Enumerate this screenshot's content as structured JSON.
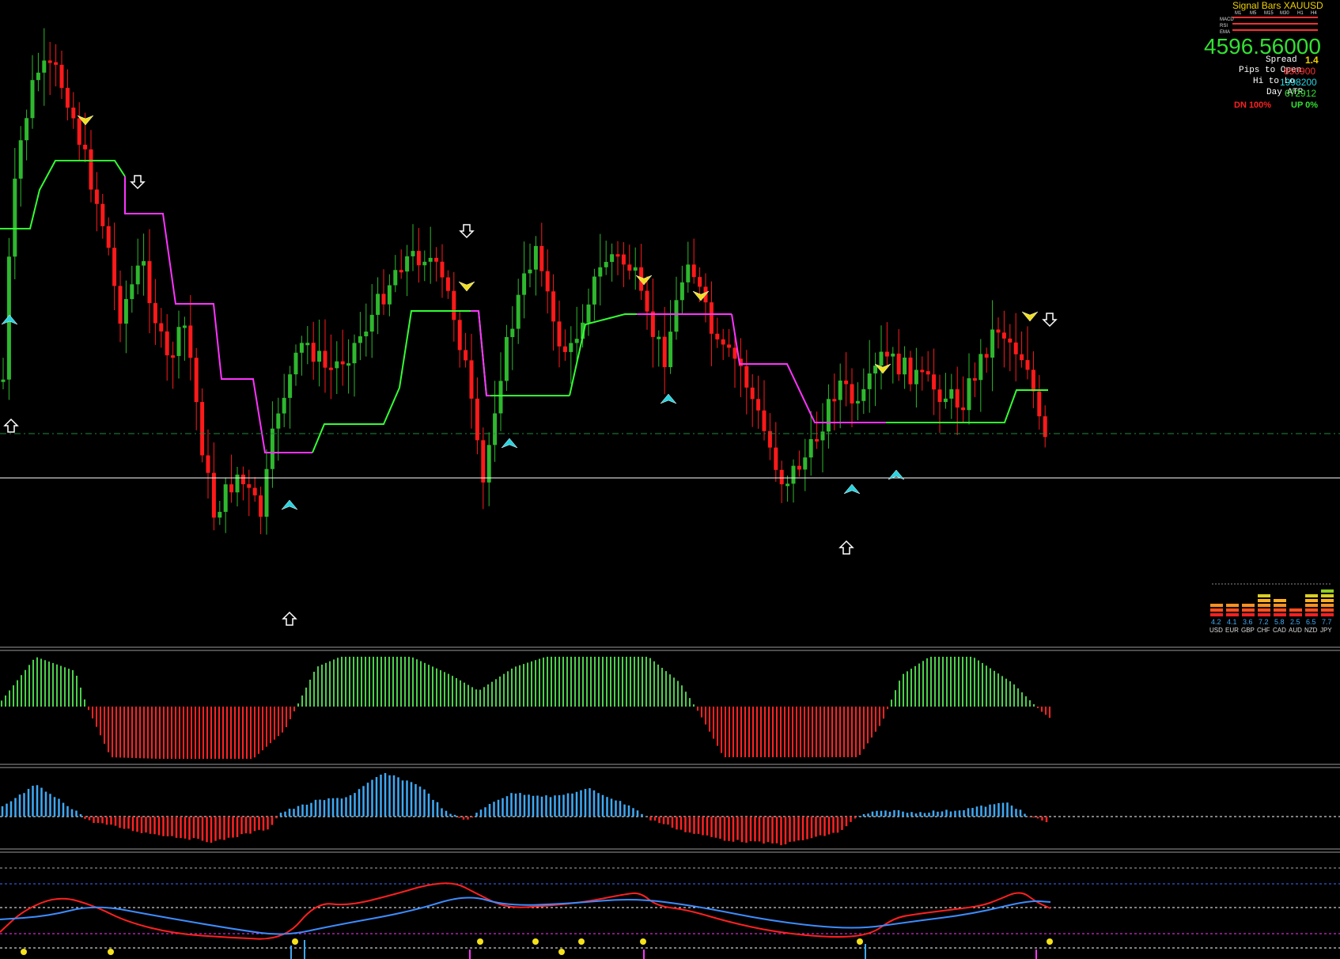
{
  "panel": {
    "title": "Signal Bars XAUUSD",
    "rows": [
      "MACD",
      "RSI",
      "EMA"
    ],
    "cols": [
      "M1",
      "M5",
      "M15",
      "M30",
      "H1",
      "H4"
    ],
    "price": "4596.56000",
    "spread_label": "Spread",
    "spread_value": "1.4",
    "pips_open_label": "Pips to Open",
    "pips_open_value": "850900",
    "hi_lo_label": "Hi to Lo",
    "hi_lo_value": "1998200",
    "day_label": "Day ATR",
    "day_value": "672912",
    "dn_label": "DN 100%",
    "up_label": "UP 0%"
  },
  "currency_meter": {
    "currencies": [
      "USD",
      "EUR",
      "GBP",
      "CHF",
      "CAD",
      "AUD",
      "NZD",
      "JPY"
    ],
    "values": [
      "4.2",
      "4.1",
      "3.6",
      "7.2",
      "5.8",
      "2.5",
      "6.5",
      "7.7"
    ],
    "strength": [
      4.2,
      4.1,
      3.6,
      7.2,
      5.8,
      2.5,
      6.5,
      7.7
    ]
  },
  "colors": {
    "bull": "#2eb82e",
    "bear": "#ff1a1a",
    "trend_up": "#33ff33",
    "trend_down": "#ff33ff",
    "osc_blue": "#3fa9f5",
    "rsi_red": "#ff2020",
    "rsi_blue": "#3d8cff",
    "buy_arrow": "#29d4e0",
    "sell_arrow": "#f0e020",
    "hline": "#ffffff",
    "price_line": "#1e8c3c"
  },
  "icons": {
    "buy": "cyan-buy-arrow-icon",
    "sell": "yellow-sell-arrow-icon",
    "up": "white-up-arrow-icon",
    "down": "white-down-arrow-icon"
  }
}
